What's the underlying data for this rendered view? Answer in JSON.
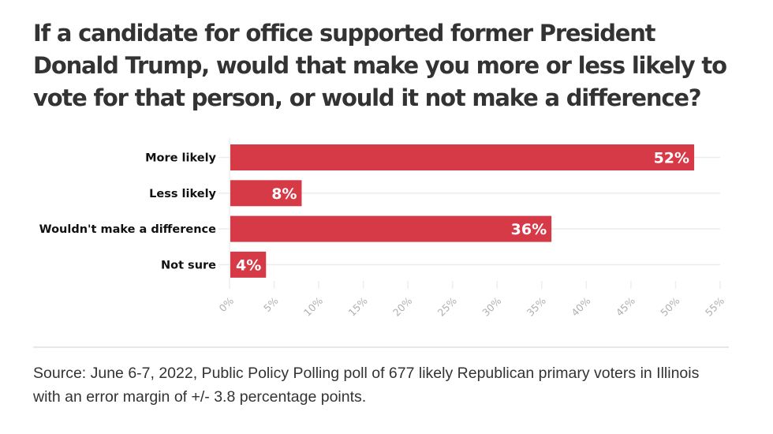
{
  "chart_data": {
    "type": "bar",
    "orientation": "horizontal",
    "title": "If a candidate for office supported former President Donald Trump, would that make you more or less likely to vote for that person, or would it not make a difference?",
    "categories": [
      "More likely",
      "Less likely",
      "Wouldn't make a difference",
      "Not sure"
    ],
    "values": [
      52,
      8,
      36,
      4
    ],
    "value_labels": [
      "52%",
      "8%",
      "36%",
      "4%"
    ],
    "xlabel": "",
    "ylabel": "",
    "xlim": [
      0,
      55
    ],
    "x_ticks": [
      0,
      5,
      10,
      15,
      20,
      25,
      30,
      35,
      40,
      45,
      50,
      55
    ],
    "x_tick_labels": [
      "0%",
      "5%",
      "10%",
      "15%",
      "20%",
      "25%",
      "30%",
      "35%",
      "40%",
      "45%",
      "50%",
      "55%"
    ],
    "grid": true,
    "legend": "none",
    "bar_color": "#d63a47"
  },
  "footer": {
    "source": "Source: June 6-7, 2022, Public Policy Polling poll of 677 likely Republican primary voters in Illinois with an error margin of +/- 3.8 percentage points."
  }
}
